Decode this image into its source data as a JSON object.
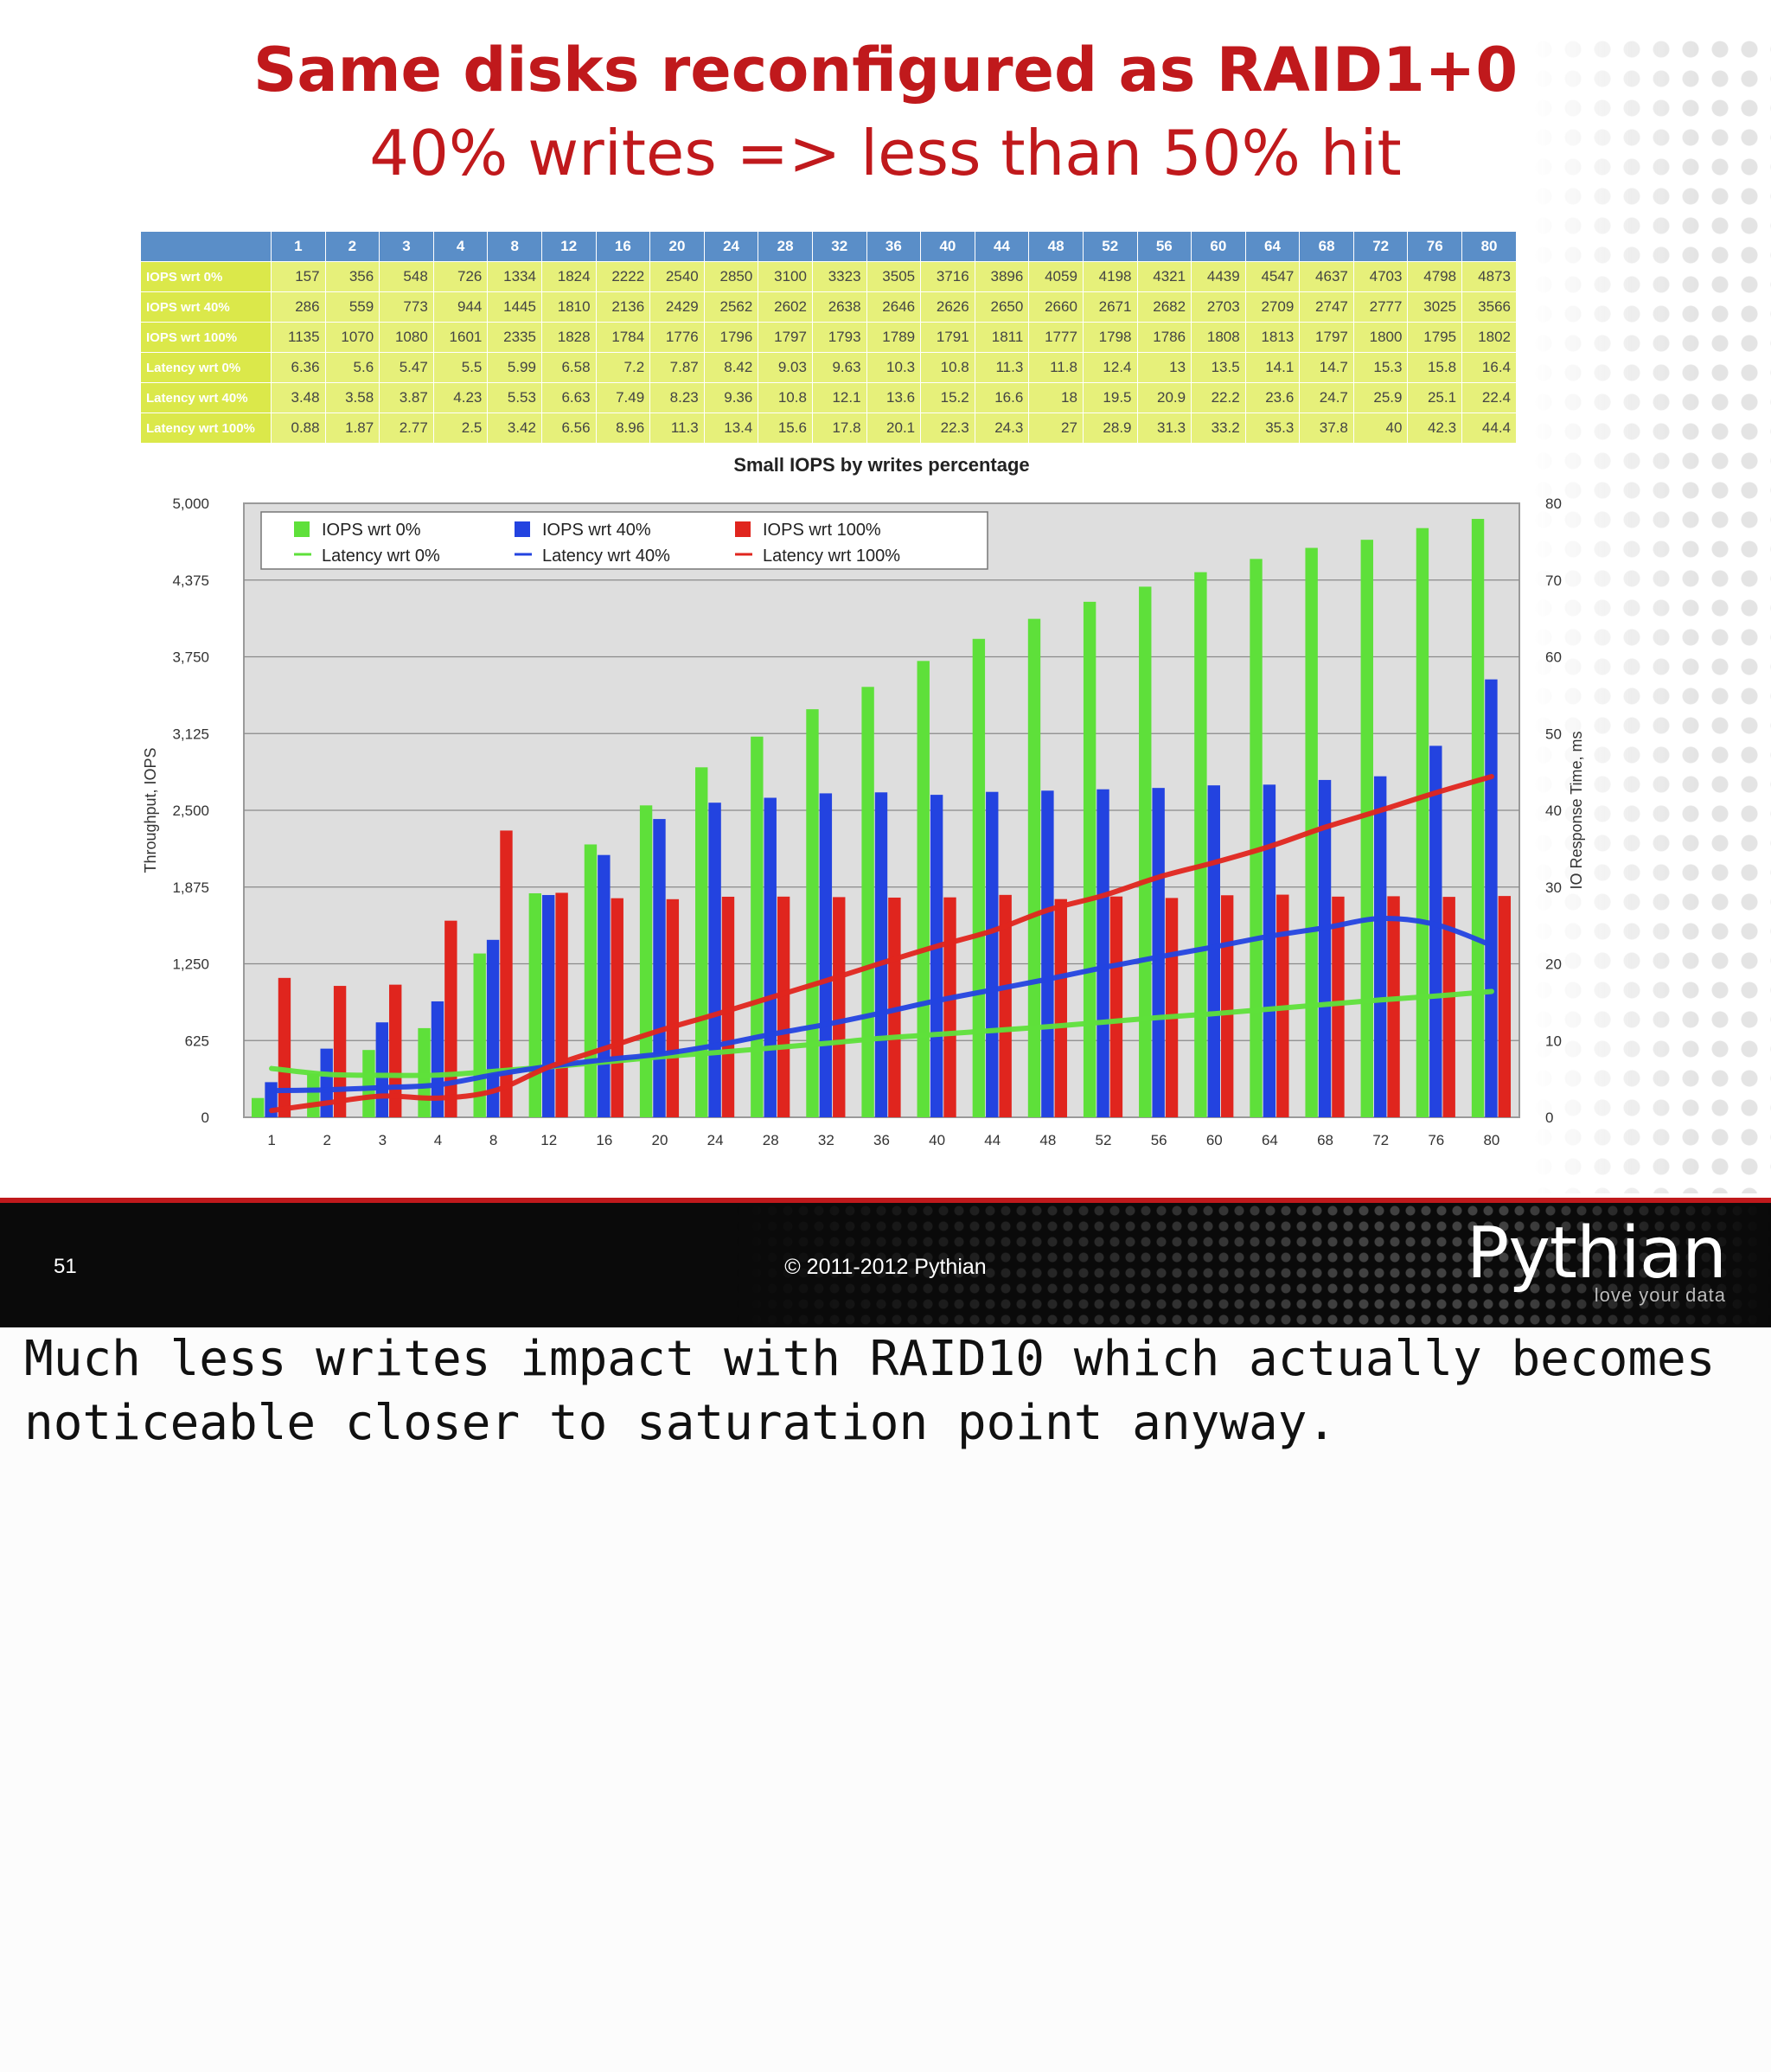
{
  "slide": {
    "title": "Same disks reconfigured as RAID1+0",
    "subtitle": "40% writes => less than 50% hit",
    "page_number": "51",
    "copyright": "© 2011-2012 Pythian",
    "logo_text": "Pythian",
    "logo_tagline": "love your data"
  },
  "notes": "Much less writes impact with RAID10 which actually becomes noticeable closer to saturation point anyway.",
  "table": {
    "columns": [
      "1",
      "2",
      "3",
      "4",
      "8",
      "12",
      "16",
      "20",
      "24",
      "28",
      "32",
      "36",
      "40",
      "44",
      "48",
      "52",
      "56",
      "60",
      "64",
      "68",
      "72",
      "76",
      "80"
    ],
    "rows": [
      {
        "label": "IOPS wrt 0%",
        "values": [
          "157",
          "356",
          "548",
          "726",
          "1334",
          "1824",
          "2222",
          "2540",
          "2850",
          "3100",
          "3323",
          "3505",
          "3716",
          "3896",
          "4059",
          "4198",
          "4321",
          "4439",
          "4547",
          "4637",
          "4703",
          "4798",
          "4873"
        ]
      },
      {
        "label": "IOPS wrt 40%",
        "values": [
          "286",
          "559",
          "773",
          "944",
          "1445",
          "1810",
          "2136",
          "2429",
          "2562",
          "2602",
          "2638",
          "2646",
          "2626",
          "2650",
          "2660",
          "2671",
          "2682",
          "2703",
          "2709",
          "2747",
          "2777",
          "3025",
          "3566"
        ]
      },
      {
        "label": "IOPS wrt 100%",
        "values": [
          "1135",
          "1070",
          "1080",
          "1601",
          "2335",
          "1828",
          "1784",
          "1776",
          "1796",
          "1797",
          "1793",
          "1789",
          "1791",
          "1811",
          "1777",
          "1798",
          "1786",
          "1808",
          "1813",
          "1797",
          "1800",
          "1795",
          "1802"
        ]
      },
      {
        "label": "Latency wrt 0%",
        "values": [
          "6.36",
          "5.6",
          "5.47",
          "5.5",
          "5.99",
          "6.58",
          "7.2",
          "7.87",
          "8.42",
          "9.03",
          "9.63",
          "10.3",
          "10.8",
          "11.3",
          "11.8",
          "12.4",
          "13",
          "13.5",
          "14.1",
          "14.7",
          "15.3",
          "15.8",
          "16.4"
        ]
      },
      {
        "label": "Latency wrt 40%",
        "values": [
          "3.48",
          "3.58",
          "3.87",
          "4.23",
          "5.53",
          "6.63",
          "7.49",
          "8.23",
          "9.36",
          "10.8",
          "12.1",
          "13.6",
          "15.2",
          "16.6",
          "18",
          "19.5",
          "20.9",
          "22.2",
          "23.6",
          "24.7",
          "25.9",
          "25.1",
          "22.4"
        ]
      },
      {
        "label": "Latency wrt 100%",
        "values": [
          "0.88",
          "1.87",
          "2.77",
          "2.5",
          "3.42",
          "6.56",
          "8.96",
          "11.3",
          "13.4",
          "15.6",
          "17.8",
          "20.1",
          "22.3",
          "24.3",
          "27",
          "28.9",
          "31.3",
          "33.2",
          "35.3",
          "37.8",
          "40",
          "42.3",
          "44.4"
        ]
      }
    ]
  },
  "chart_data": {
    "type": "bar",
    "title": "Small IOPS by writes percentage",
    "ylabel": "Throughput, IOPS",
    "y2label": "IO Response Time, ms",
    "ylim": [
      0,
      5000
    ],
    "y2lim": [
      0,
      80
    ],
    "yticks": [
      "0",
      "625",
      "1,250",
      "1,875",
      "2,500",
      "3,125",
      "3,750",
      "4,375",
      "5,000"
    ],
    "y2ticks": [
      "0",
      "10",
      "20",
      "30",
      "40",
      "50",
      "60",
      "70",
      "80"
    ],
    "categories": [
      "1",
      "2",
      "3",
      "4",
      "8",
      "12",
      "16",
      "20",
      "24",
      "28",
      "32",
      "36",
      "40",
      "44",
      "48",
      "52",
      "56",
      "60",
      "64",
      "68",
      "72",
      "76",
      "80"
    ],
    "grid": true,
    "legend_position": "top-left",
    "series": [
      {
        "name": "IOPS wrt 0%",
        "kind": "bar",
        "axis": "left",
        "color": "#5ee03a",
        "values": [
          157,
          356,
          548,
          726,
          1334,
          1824,
          2222,
          2540,
          2850,
          3100,
          3323,
          3505,
          3716,
          3896,
          4059,
          4198,
          4321,
          4439,
          4547,
          4637,
          4703,
          4798,
          4873
        ]
      },
      {
        "name": "IOPS wrt 40%",
        "kind": "bar",
        "axis": "left",
        "color": "#2343e0",
        "values": [
          286,
          559,
          773,
          944,
          1445,
          1810,
          2136,
          2429,
          2562,
          2602,
          2638,
          2646,
          2626,
          2650,
          2660,
          2671,
          2682,
          2703,
          2709,
          2747,
          2777,
          3025,
          3566
        ]
      },
      {
        "name": "IOPS wrt 100%",
        "kind": "bar",
        "axis": "left",
        "color": "#e0251e",
        "values": [
          1135,
          1070,
          1080,
          1601,
          2335,
          1828,
          1784,
          1776,
          1796,
          1797,
          1793,
          1789,
          1791,
          1811,
          1777,
          1798,
          1786,
          1808,
          1813,
          1797,
          1800,
          1795,
          1802
        ]
      },
      {
        "name": "Latency wrt 0%",
        "kind": "line",
        "axis": "right",
        "color": "#5ee03a",
        "values": [
          6.36,
          5.6,
          5.47,
          5.5,
          5.99,
          6.58,
          7.2,
          7.87,
          8.42,
          9.03,
          9.63,
          10.3,
          10.8,
          11.3,
          11.8,
          12.4,
          13,
          13.5,
          14.1,
          14.7,
          15.3,
          15.8,
          16.4
        ]
      },
      {
        "name": "Latency wrt 40%",
        "kind": "line",
        "axis": "right",
        "color": "#2343e0",
        "values": [
          3.48,
          3.58,
          3.87,
          4.23,
          5.53,
          6.63,
          7.49,
          8.23,
          9.36,
          10.8,
          12.1,
          13.6,
          15.2,
          16.6,
          18,
          19.5,
          20.9,
          22.2,
          23.6,
          24.7,
          25.9,
          25.1,
          22.4
        ]
      },
      {
        "name": "Latency wrt 100%",
        "kind": "line",
        "axis": "right",
        "color": "#e0251e",
        "values": [
          0.88,
          1.87,
          2.77,
          2.5,
          3.42,
          6.56,
          8.96,
          11.3,
          13.4,
          15.6,
          17.8,
          20.1,
          22.3,
          24.3,
          27,
          28.9,
          31.3,
          33.2,
          35.3,
          37.8,
          40,
          42.3,
          44.4
        ]
      }
    ]
  }
}
